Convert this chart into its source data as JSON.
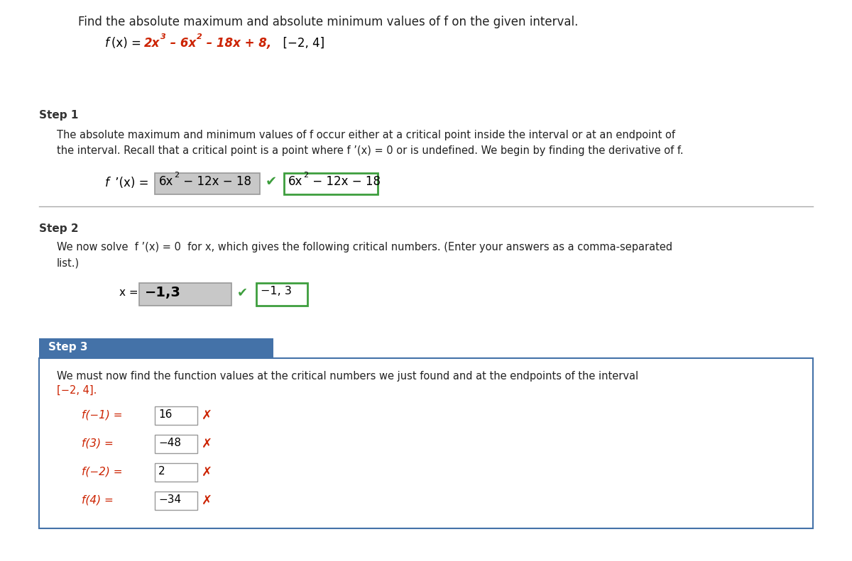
{
  "bg_color": "#ffffff",
  "title_text": "Find the absolute maximum and absolute minimum values of f on the given interval.",
  "step1_label": "Step 1",
  "step1_body_line1": "The absolute maximum and minimum values of f occur either at a critical point inside the interval or at an endpoint of",
  "step1_body_line2": "the interval. Recall that a critical point is a point where f ’(x) = 0 or is undefined. We begin by finding the derivative of f.",
  "step2_label": "Step 2",
  "step2_body_line1": "We now solve  f ’(x) = 0  for x, which gives the following critical numbers. (Enter your answers as a comma-separated",
  "step2_body_line2": "list.)",
  "x_input": "−1,3",
  "x_correct": "−1, 3",
  "step3_label": "Step 3",
  "step3_body_line1": "We must now find the function values at the critical numbers we just found and at the endpoints of the interval",
  "step3_body_line2": "[−2, 4].",
  "rows": [
    {
      "label": "f(−1) =",
      "value": "16"
    },
    {
      "label": "f(3) =",
      "value": "−48"
    },
    {
      "label": "f(−2) =",
      "value": "2"
    },
    {
      "label": "f(4) =",
      "value": "−34"
    }
  ],
  "input_bg": "#c8c8c8",
  "input_border": "#999999",
  "correct_border": "#3d9e3d",
  "correct_bg": "#ffffff",
  "step3_header_bg": "#4472a8",
  "step3_header_text": "#ffffff",
  "step3_content_border": "#4472a8",
  "check_color": "#3d9e3d",
  "red_color": "#cc2200",
  "body_text_color": "#222222",
  "step_label_color": "#333333",
  "separator_color": "#aaaaaa"
}
